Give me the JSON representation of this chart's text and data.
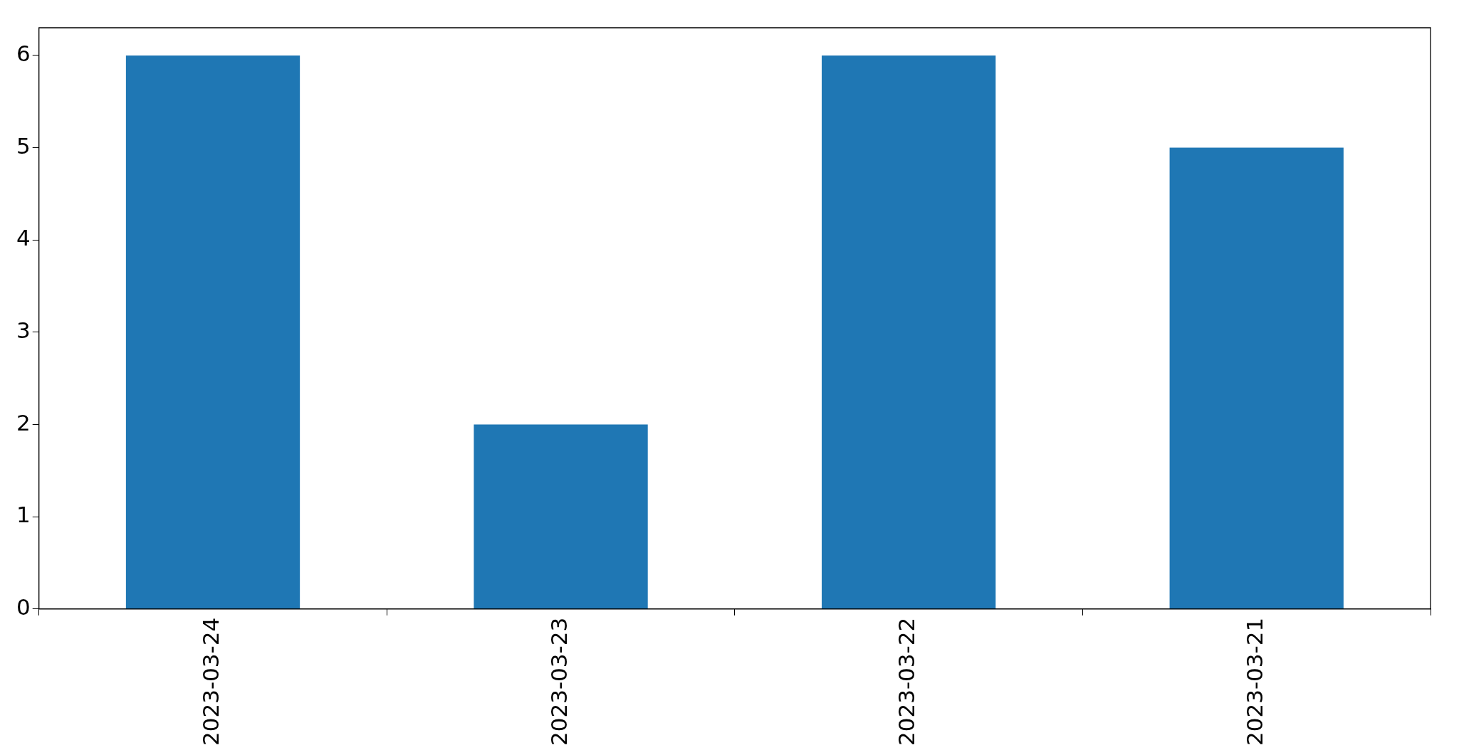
{
  "chart_data": {
    "type": "bar",
    "categories": [
      "2023-03-24",
      "2023-03-23",
      "2023-03-22",
      "2023-03-21"
    ],
    "values": [
      6,
      2,
      6,
      5
    ],
    "color": "#1f77b4",
    "ylim": [
      0,
      6.3
    ],
    "yticks": [
      0,
      1,
      2,
      3,
      4,
      5,
      6
    ]
  }
}
